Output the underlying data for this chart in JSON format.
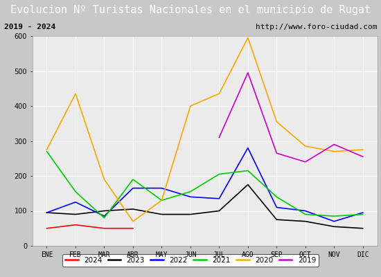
{
  "title": "Evolucion Nº Turistas Nacionales en el municipio de Rugat",
  "subtitle_left": "2019 - 2024",
  "subtitle_right": "http://www.foro-ciudad.com",
  "months": [
    "ENE",
    "FEB",
    "MAR",
    "ABR",
    "MAY",
    "JUN",
    "JUL",
    "AGO",
    "SEP",
    "OCT",
    "NOV",
    "DIC"
  ],
  "series": {
    "2024": [
      50,
      60,
      50,
      50,
      null,
      null,
      null,
      null,
      null,
      null,
      null,
      null
    ],
    "2023": [
      95,
      90,
      100,
      105,
      90,
      90,
      100,
      175,
      75,
      70,
      55,
      50
    ],
    "2022": [
      95,
      125,
      85,
      165,
      165,
      140,
      135,
      280,
      110,
      100,
      70,
      95
    ],
    "2021": [
      270,
      155,
      80,
      190,
      130,
      155,
      205,
      215,
      140,
      90,
      85,
      90
    ],
    "2020": [
      275,
      435,
      190,
      70,
      130,
      400,
      435,
      595,
      355,
      285,
      270,
      275
    ],
    "2019": [
      null,
      null,
      null,
      null,
      null,
      null,
      310,
      495,
      265,
      240,
      290,
      255
    ]
  },
  "colors": {
    "2024": "#ff0000",
    "2023": "#000000",
    "2022": "#0000ff",
    "2021": "#00cc00",
    "2020": "#ffa500",
    "2019": "#cc00cc"
  },
  "ylim": [
    0,
    600
  ],
  "yticks": [
    0,
    100,
    200,
    300,
    400,
    500,
    600
  ],
  "title_bg": "#4a86c8",
  "subtitle_bg": "#e0e0e0",
  "plot_bg": "#ebebeb",
  "outer_bg": "#c8c8c8",
  "grid_color": "#ffffff",
  "title_color": "#ffffff",
  "title_fontsize": 11,
  "subtitle_fontsize": 8,
  "tick_fontsize": 7,
  "legend_fontsize": 7.5
}
